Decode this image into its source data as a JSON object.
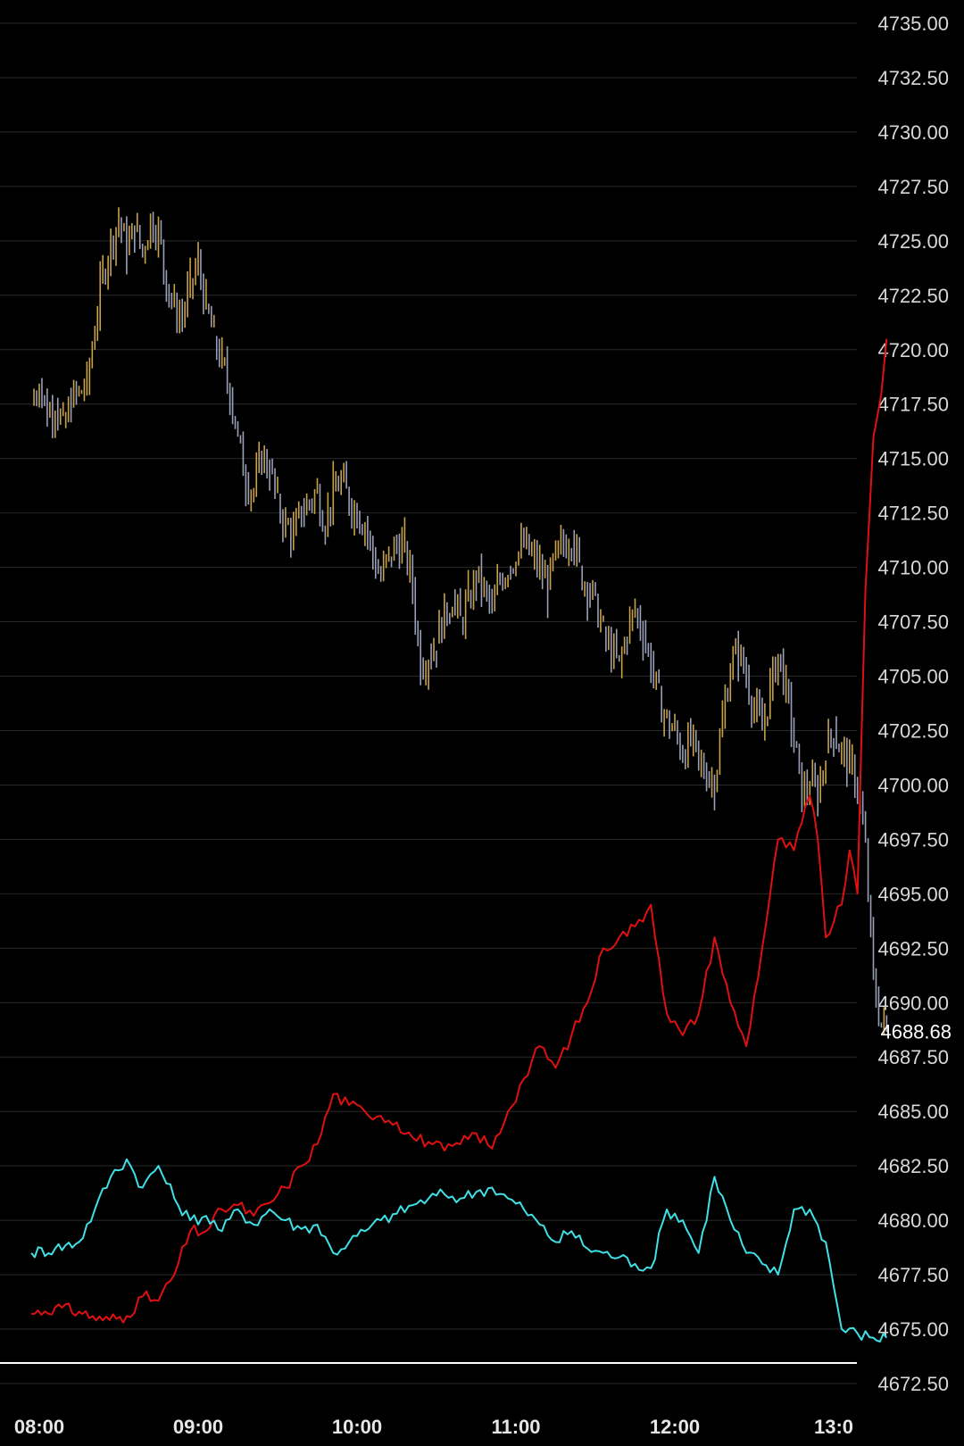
{
  "colors": {
    "background": "#000000",
    "grid": "#2a2a2a",
    "bar_up": "#c8a24a",
    "bar_down": "#9aa0b8",
    "red_line": "#e01010",
    "cyan_line": "#3fe0e6",
    "baseline": "#ffffff"
  },
  "chart_data": {
    "type": "line",
    "y_axis_position": "right",
    "grid": true,
    "ylim": [
      4672.5,
      4735.0
    ],
    "y_ticks": [
      "4735.00",
      "4732.50",
      "4730.00",
      "4727.50",
      "4725.00",
      "4722.50",
      "4720.00",
      "4717.50",
      "4715.00",
      "4712.50",
      "4710.00",
      "4707.50",
      "4705.00",
      "4702.50",
      "4700.00",
      "4697.50",
      "4695.00",
      "4692.50",
      "4690.00",
      "4687.50",
      "4685.00",
      "4682.50",
      "4680.00",
      "4677.50",
      "4675.00",
      "4672.50"
    ],
    "x_ticks": [
      "08:00",
      "09:00",
      "10:00",
      "11:00",
      "12:00",
      "13:0"
    ],
    "last_price": "4688.68",
    "price_bars": {
      "type": "bar-ohlc",
      "points": [
        [
          "07:57",
          4717.5
        ],
        [
          "08:00",
          4718.5
        ],
        [
          "08:03",
          4717.0
        ],
        [
          "08:06",
          4717.5
        ],
        [
          "08:09",
          4716.5
        ],
        [
          "08:12",
          4717.5
        ],
        [
          "08:15",
          4718.0
        ],
        [
          "08:18",
          4718.5
        ],
        [
          "08:21",
          4721.0
        ],
        [
          "08:24",
          4723.5
        ],
        [
          "08:27",
          4725.0
        ],
        [
          "08:30",
          4726.0
        ],
        [
          "08:33",
          4724.5
        ],
        [
          "08:36",
          4725.5
        ],
        [
          "08:39",
          4724.5
        ],
        [
          "08:42",
          4726.0
        ],
        [
          "08:45",
          4725.5
        ],
        [
          "08:48",
          4723.0
        ],
        [
          "08:51",
          4722.0
        ],
        [
          "08:54",
          4721.5
        ],
        [
          "08:57",
          4723.0
        ],
        [
          "09:00",
          4724.0
        ],
        [
          "09:03",
          4722.0
        ],
        [
          "09:06",
          4720.5
        ],
        [
          "09:09",
          4719.5
        ],
        [
          "09:12",
          4718.0
        ],
        [
          "09:15",
          4716.0
        ],
        [
          "09:18",
          4714.0
        ],
        [
          "09:21",
          4713.5
        ],
        [
          "09:24",
          4715.0
        ],
        [
          "09:27",
          4714.5
        ],
        [
          "09:30",
          4713.0
        ],
        [
          "09:33",
          4712.0
        ],
        [
          "09:36",
          4711.5
        ],
        [
          "09:39",
          4712.5
        ],
        [
          "09:42",
          4713.0
        ],
        [
          "09:45",
          4713.5
        ],
        [
          "09:48",
          4712.0
        ],
        [
          "09:51",
          4713.5
        ],
        [
          "09:54",
          4714.0
        ],
        [
          "09:57",
          4713.0
        ],
        [
          "10:00",
          4712.5
        ],
        [
          "10:03",
          4712.0
        ],
        [
          "10:06",
          4710.5
        ],
        [
          "10:09",
          4709.5
        ],
        [
          "10:12",
          4710.5
        ],
        [
          "10:15",
          4711.0
        ],
        [
          "10:18",
          4711.0
        ],
        [
          "10:21",
          4709.0
        ],
        [
          "10:24",
          4705.5
        ],
        [
          "10:27",
          4706.0
        ],
        [
          "10:30",
          4706.5
        ],
        [
          "10:33",
          4708.0
        ],
        [
          "10:36",
          4708.5
        ],
        [
          "10:39",
          4707.5
        ],
        [
          "10:42",
          4708.5
        ],
        [
          "10:45",
          4709.5
        ],
        [
          "10:48",
          4709.0
        ],
        [
          "10:51",
          4708.0
        ],
        [
          "10:54",
          4709.5
        ],
        [
          "10:57",
          4710.0
        ],
        [
          "11:00",
          4710.5
        ],
        [
          "11:03",
          4711.0
        ],
        [
          "11:06",
          4710.5
        ],
        [
          "11:09",
          4710.0
        ],
        [
          "11:12",
          4709.0
        ],
        [
          "11:15",
          4710.5
        ],
        [
          "11:18",
          4711.0
        ],
        [
          "11:21",
          4711.5
        ],
        [
          "11:24",
          4710.0
        ],
        [
          "11:27",
          4709.0
        ],
        [
          "11:30",
          4708.5
        ],
        [
          "11:33",
          4707.0
        ],
        [
          "11:36",
          4706.0
        ],
        [
          "11:39",
          4705.5
        ],
        [
          "11:42",
          4707.0
        ],
        [
          "11:45",
          4708.0
        ],
        [
          "11:48",
          4707.0
        ],
        [
          "11:51",
          4705.5
        ],
        [
          "11:54",
          4704.0
        ],
        [
          "11:57",
          4703.0
        ],
        [
          "12:00",
          4702.5
        ],
        [
          "12:03",
          4701.5
        ],
        [
          "12:06",
          4702.0
        ],
        [
          "12:09",
          4701.0
        ],
        [
          "12:12",
          4700.5
        ],
        [
          "12:15",
          4700.0
        ],
        [
          "12:18",
          4703.0
        ],
        [
          "12:21",
          4705.5
        ],
        [
          "12:24",
          4706.0
        ],
        [
          "12:27",
          4705.0
        ],
        [
          "12:30",
          4703.5
        ],
        [
          "12:33",
          4702.5
        ],
        [
          "12:36",
          4704.5
        ],
        [
          "12:39",
          4706.0
        ],
        [
          "12:42",
          4704.5
        ],
        [
          "12:45",
          4702.0
        ],
        [
          "12:48",
          4699.5
        ],
        [
          "12:51",
          4700.0
        ],
        [
          "12:54",
          4699.5
        ],
        [
          "12:57",
          4701.5
        ],
        [
          "13:00",
          4702.5
        ],
        [
          "13:03",
          4701.5
        ],
        [
          "13:06",
          4701.0
        ],
        [
          "13:09",
          4700.0
        ],
        [
          "13:12",
          4697.0
        ],
        [
          "13:15",
          4691.0
        ],
        [
          "13:18",
          4689.0
        ],
        [
          "13:20",
          4688.7
        ]
      ]
    },
    "series": [
      {
        "color": "#e01010",
        "points": [
          [
            "07:57",
            4675.7
          ],
          [
            "08:06",
            4676.0
          ],
          [
            "08:15",
            4675.8
          ],
          [
            "08:24",
            4675.4
          ],
          [
            "08:33",
            4675.6
          ],
          [
            "08:39",
            4676.5
          ],
          [
            "08:45",
            4676.3
          ],
          [
            "08:51",
            4677.5
          ],
          [
            "08:57",
            4679.5
          ],
          [
            "09:03",
            4679.5
          ],
          [
            "09:09",
            4680.5
          ],
          [
            "09:15",
            4680.7
          ],
          [
            "09:21",
            4680.2
          ],
          [
            "09:27",
            4680.8
          ],
          [
            "09:33",
            4681.5
          ],
          [
            "09:39",
            4682.5
          ],
          [
            "09:45",
            4683.5
          ],
          [
            "09:51",
            4685.8
          ],
          [
            "09:57",
            4685.3
          ],
          [
            "10:03",
            4685.0
          ],
          [
            "10:09",
            4684.8
          ],
          [
            "10:15",
            4684.5
          ],
          [
            "10:21",
            4683.8
          ],
          [
            "10:27",
            4683.6
          ],
          [
            "10:33",
            4683.2
          ],
          [
            "10:39",
            4683.5
          ],
          [
            "10:45",
            4684.0
          ],
          [
            "10:51",
            4683.3
          ],
          [
            "10:57",
            4685.0
          ],
          [
            "11:03",
            4686.5
          ],
          [
            "11:09",
            4688.0
          ],
          [
            "11:15",
            4687.0
          ],
          [
            "11:21",
            4688.5
          ],
          [
            "11:27",
            4690.0
          ],
          [
            "11:33",
            4692.5
          ],
          [
            "11:39",
            4693.0
          ],
          [
            "11:45",
            4693.5
          ],
          [
            "11:51",
            4694.5
          ],
          [
            "11:54",
            4692.0
          ],
          [
            "11:57",
            4689.5
          ],
          [
            "12:03",
            4688.5
          ],
          [
            "12:09",
            4689.5
          ],
          [
            "12:15",
            4693.0
          ],
          [
            "12:21",
            4690.0
          ],
          [
            "12:27",
            4688.0
          ],
          [
            "12:33",
            4692.5
          ],
          [
            "12:39",
            4697.5
          ],
          [
            "12:45",
            4697.0
          ],
          [
            "12:51",
            4699.5
          ],
          [
            "12:54",
            4697.5
          ],
          [
            "12:57",
            4693.0
          ],
          [
            "13:03",
            4694.5
          ],
          [
            "13:06",
            4697.0
          ],
          [
            "13:09",
            4695.0
          ],
          [
            "13:12",
            4709.0
          ],
          [
            "13:15",
            4716.0
          ],
          [
            "13:18",
            4718.0
          ],
          [
            "13:20",
            4720.5
          ]
        ]
      },
      {
        "color": "#3fe0e6",
        "points": [
          [
            "07:57",
            4678.5
          ],
          [
            "08:06",
            4678.7
          ],
          [
            "08:15",
            4679.0
          ],
          [
            "08:21",
            4680.5
          ],
          [
            "08:27",
            4682.0
          ],
          [
            "08:33",
            4682.8
          ],
          [
            "08:39",
            4681.5
          ],
          [
            "08:45",
            4682.5
          ],
          [
            "08:51",
            4681.0
          ],
          [
            "08:57",
            4680.0
          ],
          [
            "09:03",
            4680.2
          ],
          [
            "09:09",
            4679.5
          ],
          [
            "09:15",
            4680.5
          ],
          [
            "09:21",
            4679.8
          ],
          [
            "09:27",
            4680.5
          ],
          [
            "09:33",
            4680.0
          ],
          [
            "09:39",
            4679.6
          ],
          [
            "09:45",
            4679.8
          ],
          [
            "09:51",
            4678.5
          ],
          [
            "09:57",
            4679.0
          ],
          [
            "10:03",
            4679.5
          ],
          [
            "10:09",
            4680.0
          ],
          [
            "10:15",
            4680.3
          ],
          [
            "10:21",
            4680.7
          ],
          [
            "10:27",
            4681.0
          ],
          [
            "10:33",
            4681.2
          ],
          [
            "10:39",
            4681.0
          ],
          [
            "10:45",
            4681.3
          ],
          [
            "10:51",
            4681.5
          ],
          [
            "10:57",
            4681.0
          ],
          [
            "11:03",
            4680.5
          ],
          [
            "11:09",
            4679.8
          ],
          [
            "11:15",
            4679.0
          ],
          [
            "11:21",
            4679.5
          ],
          [
            "11:27",
            4678.7
          ],
          [
            "11:33",
            4678.5
          ],
          [
            "11:39",
            4678.3
          ],
          [
            "11:45",
            4678.0
          ],
          [
            "11:51",
            4677.8
          ],
          [
            "11:57",
            4680.5
          ],
          [
            "12:03",
            4680.0
          ],
          [
            "12:09",
            4678.5
          ],
          [
            "12:15",
            4682.0
          ],
          [
            "12:21",
            4680.0
          ],
          [
            "12:27",
            4678.5
          ],
          [
            "12:33",
            4678.0
          ],
          [
            "12:39",
            4677.5
          ],
          [
            "12:45",
            4680.5
          ],
          [
            "12:51",
            4680.5
          ],
          [
            "12:57",
            4679.0
          ],
          [
            "13:03",
            4675.0
          ],
          [
            "13:09",
            4674.8
          ],
          [
            "13:15",
            4674.6
          ],
          [
            "13:20",
            4674.6
          ]
        ]
      }
    ]
  }
}
